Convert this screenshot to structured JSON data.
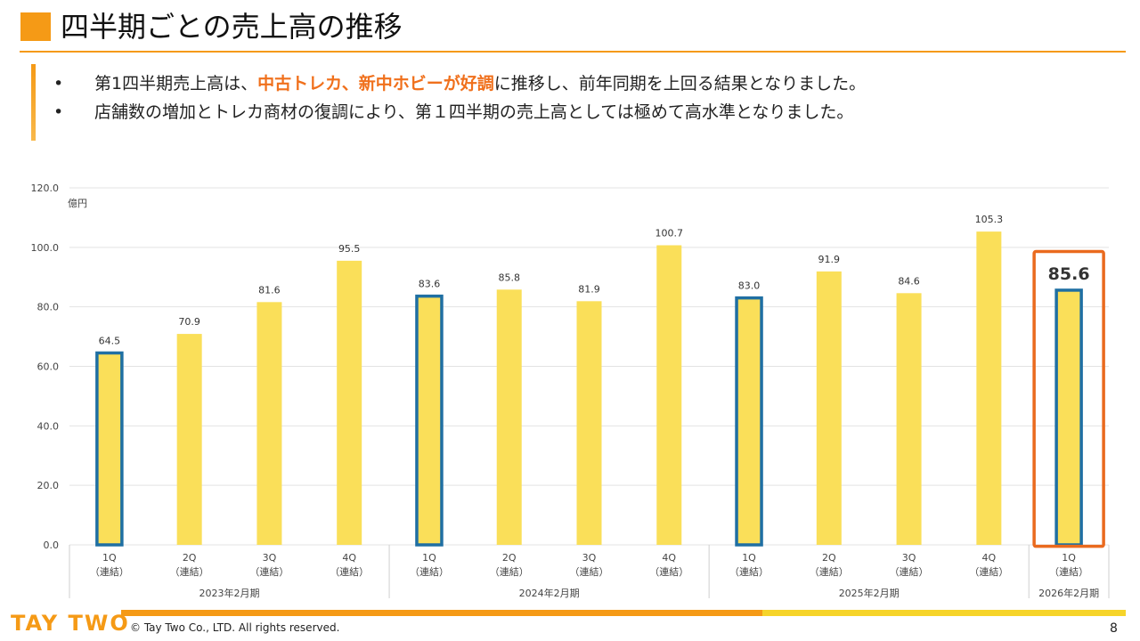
{
  "header": {
    "title": "四半期ごとの売上高の推移"
  },
  "bullets": [
    {
      "marker": "•",
      "parts": [
        {
          "text": "第1四半期売上高は、",
          "highlight": false
        },
        {
          "text": "中古トレカ、新中ホビーが好調",
          "highlight": true
        },
        {
          "text": "に推移し、前年同期を上回る結果となりました。",
          "highlight": false
        }
      ]
    },
    {
      "marker": "•",
      "parts": [
        {
          "text": "店舗数の増加とトレカ商材の復調により、第１四半期の売上高としては極めて高水準となりました。",
          "highlight": false
        }
      ]
    }
  ],
  "chart_data": {
    "type": "bar",
    "unit_label": "億円",
    "ylim": [
      0,
      120
    ],
    "yticks": [
      "0.0",
      "20.0",
      "40.0",
      "60.0",
      "80.0",
      "100.0",
      "120.0"
    ],
    "grid": true,
    "categories": [
      {
        "q": "1Q",
        "sub": "（連結）",
        "value": 64.5,
        "label": "64.5",
        "outlined": true
      },
      {
        "q": "2Q",
        "sub": "（連結）",
        "value": 70.9,
        "label": "70.9",
        "outlined": false
      },
      {
        "q": "3Q",
        "sub": "（連結）",
        "value": 81.6,
        "label": "81.6",
        "outlined": false
      },
      {
        "q": "4Q",
        "sub": "（連結）",
        "value": 95.5,
        "label": "95.5",
        "outlined": false
      },
      {
        "q": "1Q",
        "sub": "（連結）",
        "value": 83.6,
        "label": "83.6",
        "outlined": true
      },
      {
        "q": "2Q",
        "sub": "（連結）",
        "value": 85.8,
        "label": "85.8",
        "outlined": false
      },
      {
        "q": "3Q",
        "sub": "（連結）",
        "value": 81.9,
        "label": "81.9",
        "outlined": false
      },
      {
        "q": "4Q",
        "sub": "（連結）",
        "value": 100.7,
        "label": "100.7",
        "outlined": false
      },
      {
        "q": "1Q",
        "sub": "（連結）",
        "value": 83.0,
        "label": "83.0",
        "outlined": true
      },
      {
        "q": "2Q",
        "sub": "（連結）",
        "value": 91.9,
        "label": "91.9",
        "outlined": false
      },
      {
        "q": "3Q",
        "sub": "（連結）",
        "value": 84.6,
        "label": "84.6",
        "outlined": false
      },
      {
        "q": "4Q",
        "sub": "（連結）",
        "value": 105.3,
        "label": "105.3",
        "outlined": false
      },
      {
        "q": "1Q",
        "sub": "（連結）",
        "value": 85.6,
        "label": "85.6",
        "outlined": true,
        "emphasized": true
      }
    ],
    "groups": [
      {
        "label": "2023年2月期",
        "count": 4
      },
      {
        "label": "2024年2月期",
        "count": 4
      },
      {
        "label": "2025年2月期",
        "count": 4
      },
      {
        "label": "2026年2月期",
        "count": 1
      }
    ],
    "colors": {
      "bar": "#fadf59",
      "outline": "#1f6fa3",
      "highlight_box": "#ea6a1e",
      "grid": "#e3e3e3",
      "text": "#444444"
    }
  },
  "footer": {
    "logo": "TAY TWO",
    "copyright": "© Tay Two Co., LTD. All rights reserved.",
    "page_number": "8"
  }
}
